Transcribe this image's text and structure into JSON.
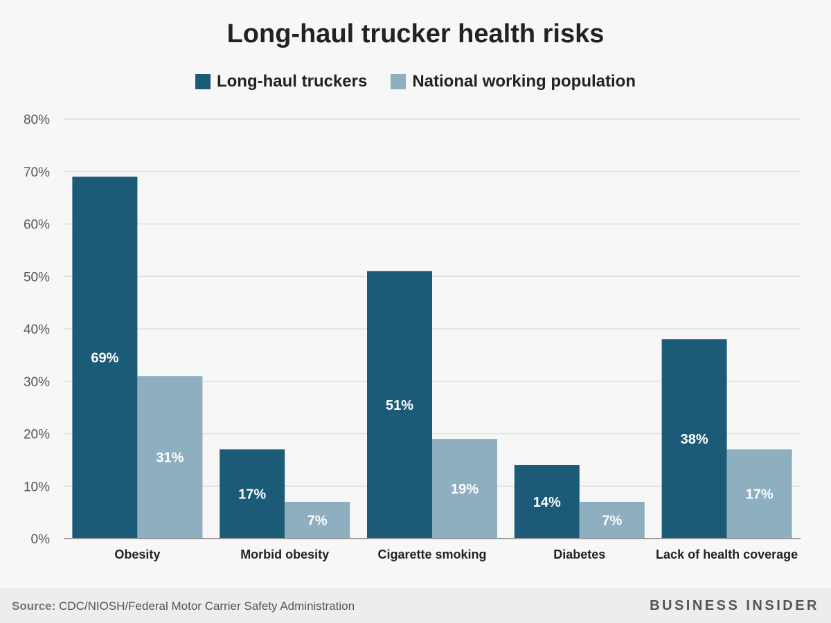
{
  "title": "Long-haul trucker health risks",
  "colors": {
    "long_haul": "#1b5b77",
    "national": "#8eafbf",
    "grid": "#dddddd",
    "axis": "#999999",
    "bar_label": "#ffffff",
    "tick_text": "#555555",
    "category_text": "#222222"
  },
  "legend": [
    {
      "label": "Long-haul truckers",
      "color": "#1b5b77"
    },
    {
      "label": "National working population",
      "color": "#8eafbf"
    }
  ],
  "chart_data": {
    "type": "bar",
    "title": "Long-haul trucker health risks",
    "xlabel": "",
    "ylabel": "",
    "categories": [
      "Obesity",
      "Morbid obesity",
      "Cigarette smoking",
      "Diabetes",
      "Lack of health coverage"
    ],
    "series": [
      {
        "name": "Long-haul truckers",
        "values": [
          69,
          17,
          51,
          14,
          38
        ],
        "labels": [
          "69%",
          "17%",
          "51%",
          "14%",
          "38%"
        ],
        "color": "#1b5b77"
      },
      {
        "name": "National working population",
        "values": [
          31,
          7,
          19,
          7,
          17
        ],
        "labels": [
          "31%",
          "7%",
          "19%",
          "7%",
          "17%"
        ],
        "color": "#8eafbf"
      }
    ],
    "ylim": [
      0,
      80
    ],
    "yticks": [
      0,
      10,
      20,
      30,
      40,
      50,
      60,
      70,
      80
    ],
    "ytick_labels": [
      "0%",
      "10%",
      "20%",
      "30%",
      "40%",
      "50%",
      "60%",
      "70%",
      "80%"
    ],
    "grid": true,
    "legend_position": "top-center"
  },
  "footer": {
    "source_key": "Source:",
    "source_text": "CDC/NIOSH/Federal Motor Carrier Safety Administration",
    "brand": "BUSINESS INSIDER"
  }
}
